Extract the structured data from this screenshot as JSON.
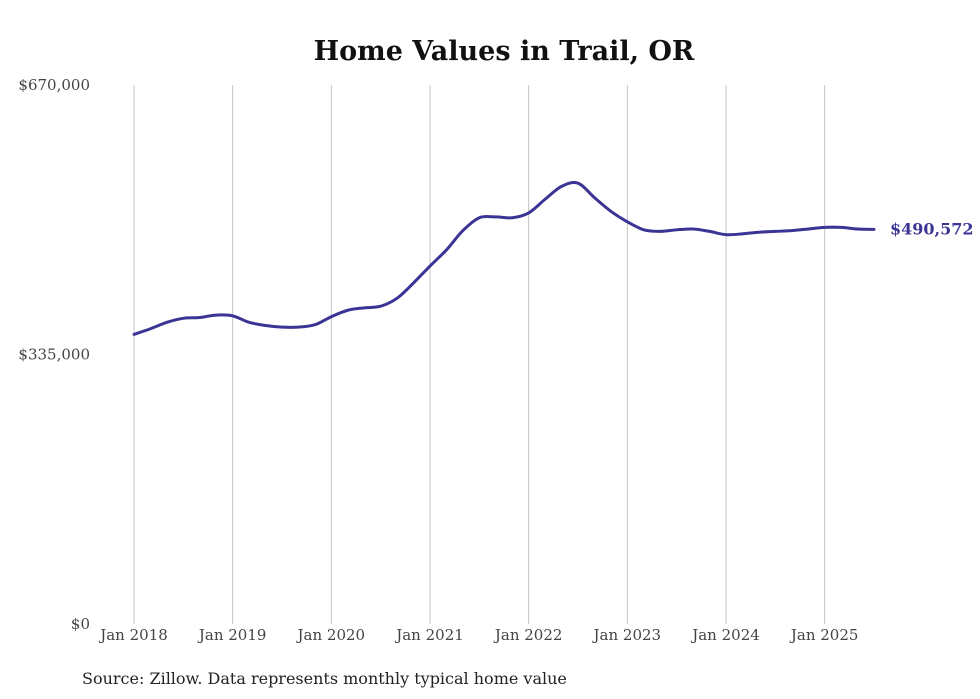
{
  "colors": {
    "line": "#3b3494",
    "grid": "#c4c4c4",
    "text": "#444444",
    "title": "#111111"
  },
  "chart_data": {
    "type": "line",
    "title": "Home Values in Trail, OR",
    "xlabel": "",
    "ylabel": "",
    "source": "Source: Zillow. Data represents monthly typical home value",
    "ylim": [
      0,
      670000
    ],
    "xlim": [
      "2018-01",
      "2025-07"
    ],
    "grid": "vertical",
    "y_ticks": [
      {
        "value": 0,
        "label": "$0"
      },
      {
        "value": 335000,
        "label": "$335,000"
      },
      {
        "value": 670000,
        "label": "$670,000"
      }
    ],
    "x_ticks": [
      {
        "value": "2018-01",
        "label": "Jan 2018"
      },
      {
        "value": "2019-01",
        "label": "Jan 2019"
      },
      {
        "value": "2020-01",
        "label": "Jan 2020"
      },
      {
        "value": "2021-01",
        "label": "Jan 2021"
      },
      {
        "value": "2022-01",
        "label": "Jan 2022"
      },
      {
        "value": "2023-01",
        "label": "Jan 2023"
      },
      {
        "value": "2024-01",
        "label": "Jan 2024"
      },
      {
        "value": "2025-01",
        "label": "Jan 2025"
      }
    ],
    "end_label": "$490,572",
    "series": [
      {
        "x": [
          "2018-01",
          "2018-03",
          "2018-05",
          "2018-07",
          "2018-09",
          "2018-11",
          "2019-01",
          "2019-03",
          "2019-05",
          "2019-07",
          "2019-09",
          "2019-11",
          "2020-01",
          "2020-03",
          "2020-05",
          "2020-07",
          "2020-09",
          "2020-11",
          "2021-01",
          "2021-03",
          "2021-05",
          "2021-07",
          "2021-09",
          "2021-11",
          "2022-01",
          "2022-03",
          "2022-05",
          "2022-07",
          "2022-09",
          "2022-11",
          "2023-01",
          "2023-03",
          "2023-05",
          "2023-07",
          "2023-09",
          "2023-11",
          "2024-01",
          "2024-03",
          "2024-05",
          "2024-07",
          "2024-09",
          "2024-11",
          "2025-01",
          "2025-03",
          "2025-05",
          "2025-07"
        ],
        "values": [
          360000,
          367000,
          375000,
          380000,
          381000,
          384000,
          383000,
          375000,
          371000,
          369000,
          369000,
          372000,
          382000,
          390000,
          393000,
          395000,
          405000,
          424000,
          445000,
          465000,
          489000,
          505000,
          506000,
          505000,
          511000,
          528000,
          544000,
          548000,
          530000,
          513000,
          500000,
          490000,
          488000,
          490000,
          491000,
          488000,
          484000,
          485000,
          487000,
          488000,
          489000,
          491000,
          493000,
          493000,
          491000,
          490572
        ]
      }
    ]
  }
}
